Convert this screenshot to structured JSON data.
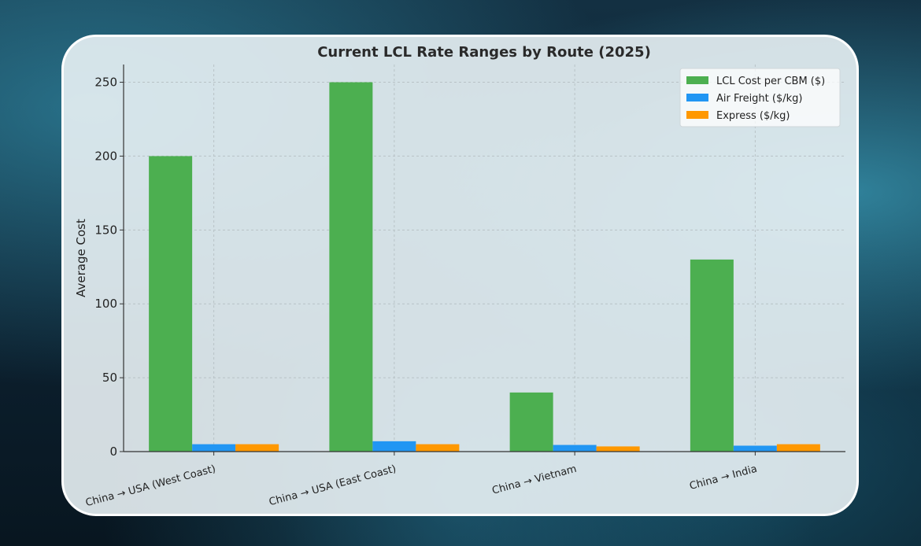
{
  "chart_data": {
    "type": "bar",
    "title": "Current LCL Rate Ranges by Route (2025)",
    "xlabel": "",
    "ylabel": "Average Cost",
    "ylim": [
      0,
      262
    ],
    "yticks": [
      0,
      50,
      100,
      150,
      200,
      250
    ],
    "categories": [
      "China → USA (West Coast)",
      "China → USA (East Coast)",
      "China → Vietnam",
      "China → India"
    ],
    "series": [
      {
        "name": "LCL Cost per CBM ($)",
        "color": "#4caf50",
        "values": [
          200,
          250,
          40,
          130
        ]
      },
      {
        "name": "Air Freight ($/kg)",
        "color": "#2196f3",
        "values": [
          5,
          7,
          4.5,
          4
        ]
      },
      {
        "name": "Express ($/kg)",
        "color": "#ff9800",
        "values": [
          5,
          5,
          3.5,
          5
        ]
      }
    ],
    "grid": true,
    "legend": "top-right"
  }
}
